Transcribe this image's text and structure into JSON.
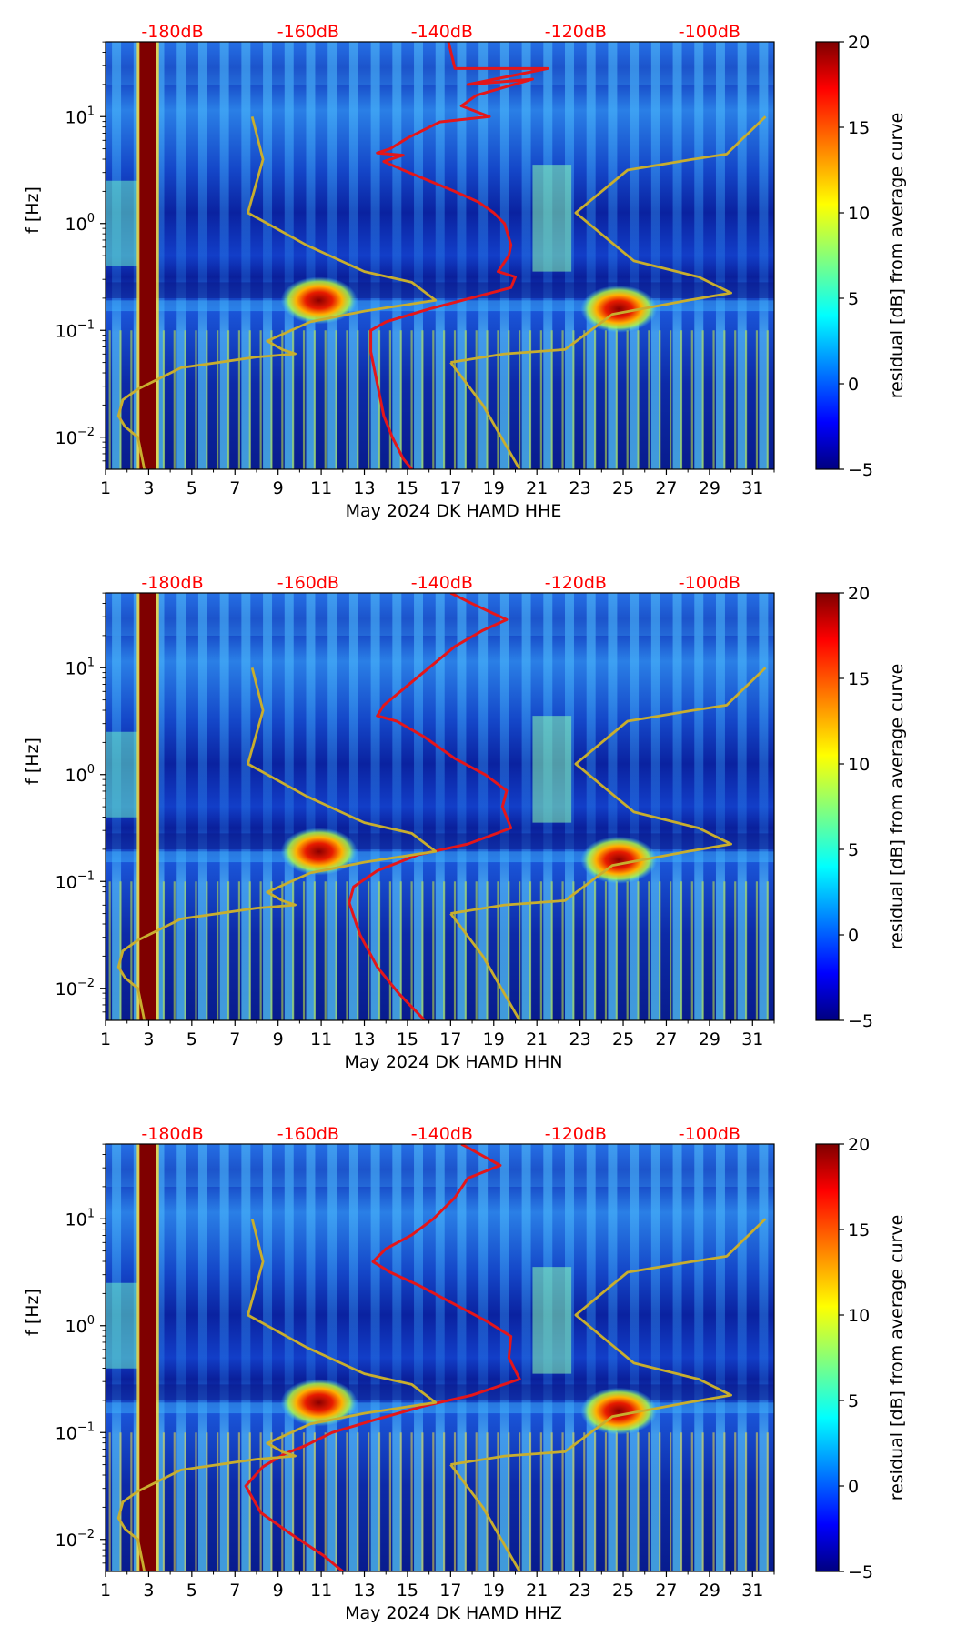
{
  "colors": {
    "red_curve": "#e4161a",
    "mustard_curve": "#c8ae2e",
    "db_label": "#ff0000",
    "axis": "#000000"
  },
  "colorbar": {
    "ticks": [
      "−5",
      "0",
      "5",
      "10",
      "15",
      "20"
    ],
    "tick_values": [
      -5,
      0,
      5,
      10,
      15,
      20
    ],
    "label": "residual [dB] from average curve"
  },
  "chart_data": [
    {
      "type": "heatmap",
      "id": "hhe",
      "xlabel": "May 2024 DK HAMD  HHE",
      "ylabel": "f [Hz]",
      "xlim": [
        1,
        32
      ],
      "ylim_log10": [
        -2.3,
        1.7
      ],
      "x_ticks": [
        "1",
        "3",
        "5",
        "7",
        "9",
        "11",
        "13",
        "15",
        "17",
        "19",
        "21",
        "23",
        "25",
        "27",
        "29",
        "31"
      ],
      "x_tick_values": [
        1,
        3,
        5,
        7,
        9,
        11,
        13,
        15,
        17,
        19,
        21,
        23,
        25,
        27,
        29,
        31
      ],
      "y_ticks": [
        {
          "base": "10",
          "exp": "−2",
          "log": -2
        },
        {
          "base": "10",
          "exp": "−1",
          "log": -1
        },
        {
          "base": "10",
          "exp": "0",
          "log": 0
        },
        {
          "base": "10",
          "exp": "1",
          "log": 1
        }
      ],
      "db_labels": [
        "-180dB",
        "-160dB",
        "-140dB",
        "-120dB",
        "-100dB"
      ],
      "db_label_days": [
        4.1,
        10.4,
        16.6,
        22.8,
        29.0
      ],
      "hot_spots": [
        {
          "day": 10.9,
          "log_f": -0.72,
          "value": 20
        },
        {
          "day": 24.8,
          "log_f": -0.8,
          "value": 17
        }
      ],
      "series": [
        {
          "name": "residual curve (red)",
          "color": "red",
          "points": [
            [
              16.9,
              1.7
            ],
            [
              17.2,
              1.45
            ],
            [
              21.5,
              1.45
            ],
            [
              17.8,
              1.3
            ],
            [
              20.8,
              1.35
            ],
            [
              18.2,
              1.2
            ],
            [
              17.5,
              1.1
            ],
            [
              18.8,
              1.0
            ],
            [
              16.5,
              0.95
            ],
            [
              15.0,
              0.8
            ],
            [
              14.2,
              0.7
            ],
            [
              13.6,
              0.66
            ],
            [
              14.8,
              0.64
            ],
            [
              13.9,
              0.58
            ],
            [
              14.8,
              0.5
            ],
            [
              16.0,
              0.4
            ],
            [
              17.2,
              0.3
            ],
            [
              18.3,
              0.2
            ],
            [
              19.0,
              0.1
            ],
            [
              19.5,
              0.0
            ],
            [
              19.8,
              -0.2
            ],
            [
              19.7,
              -0.3
            ],
            [
              19.2,
              -0.45
            ],
            [
              20.0,
              -0.5
            ],
            [
              19.8,
              -0.6
            ],
            [
              16.0,
              -0.8
            ],
            [
              14.0,
              -0.92
            ],
            [
              13.3,
              -1.0
            ],
            [
              13.3,
              -1.2
            ],
            [
              13.6,
              -1.5
            ],
            [
              13.9,
              -1.8
            ],
            [
              14.3,
              -2.0
            ],
            [
              14.8,
              -2.2
            ],
            [
              15.2,
              -2.3
            ]
          ]
        },
        {
          "name": "model curve (mustard)",
          "color": "mustard",
          "points": [
            [
              7.8,
              1.0
            ],
            [
              8.3,
              0.6
            ],
            [
              7.6,
              0.1
            ],
            [
              10.3,
              -0.2
            ],
            [
              13.0,
              -0.45
            ],
            [
              15.2,
              -0.55
            ],
            [
              16.3,
              -0.72
            ],
            [
              13.0,
              -0.82
            ],
            [
              10.5,
              -0.92
            ],
            [
              8.5,
              -1.1
            ],
            [
              9.2,
              -1.18
            ],
            [
              9.8,
              -1.22
            ],
            [
              8.0,
              -1.25
            ],
            [
              4.5,
              -1.35
            ],
            [
              2.5,
              -1.55
            ],
            [
              1.8,
              -1.65
            ],
            [
              1.6,
              -1.8
            ],
            [
              1.9,
              -1.9
            ],
            [
              2.5,
              -2.0
            ],
            [
              2.8,
              -2.3
            ]
          ]
        },
        {
          "name": "model curve lower right (mustard)",
          "color": "mustard",
          "points": [
            [
              17.0,
              -1.3
            ],
            [
              19.5,
              -1.22
            ],
            [
              22.3,
              -1.18
            ],
            [
              24.5,
              -0.85
            ],
            [
              28.0,
              -0.72
            ],
            [
              30.0,
              -0.65
            ],
            [
              28.5,
              -0.5
            ],
            [
              25.5,
              -0.35
            ],
            [
              22.8,
              0.1
            ],
            [
              25.2,
              0.5
            ],
            [
              28.2,
              0.6
            ],
            [
              29.8,
              0.65
            ],
            [
              31.6,
              1.0
            ]
          ]
        },
        {
          "name": "model curve bottom right (mustard)",
          "color": "mustard",
          "points": [
            [
              17.0,
              -1.3
            ],
            [
              18.5,
              -1.7
            ],
            [
              20.2,
              -2.3
            ]
          ]
        }
      ]
    },
    {
      "type": "heatmap",
      "id": "hhn",
      "xlabel": "May 2024 DK HAMD  HHN",
      "ylabel": "f [Hz]",
      "xlim": [
        1,
        32
      ],
      "ylim_log10": [
        -2.3,
        1.7
      ],
      "x_ticks": [
        "1",
        "3",
        "5",
        "7",
        "9",
        "11",
        "13",
        "15",
        "17",
        "19",
        "21",
        "23",
        "25",
        "27",
        "29",
        "31"
      ],
      "x_tick_values": [
        1,
        3,
        5,
        7,
        9,
        11,
        13,
        15,
        17,
        19,
        21,
        23,
        25,
        27,
        29,
        31
      ],
      "y_ticks": [
        {
          "base": "10",
          "exp": "−2",
          "log": -2
        },
        {
          "base": "10",
          "exp": "−1",
          "log": -1
        },
        {
          "base": "10",
          "exp": "0",
          "log": 0
        },
        {
          "base": "10",
          "exp": "1",
          "log": 1
        }
      ],
      "db_labels": [
        "-180dB",
        "-160dB",
        "-140dB",
        "-120dB",
        "-100dB"
      ],
      "db_label_days": [
        4.1,
        10.4,
        16.6,
        22.8,
        29.0
      ],
      "hot_spots": [
        {
          "day": 10.9,
          "log_f": -0.72,
          "value": 20
        },
        {
          "day": 24.8,
          "log_f": -0.8,
          "value": 17
        }
      ],
      "series": [
        {
          "name": "residual curve (red)",
          "color": "red",
          "points": [
            [
              17.0,
              1.7
            ],
            [
              18.0,
              1.6
            ],
            [
              19.6,
              1.45
            ],
            [
              18.5,
              1.35
            ],
            [
              17.2,
              1.2
            ],
            [
              16.0,
              1.0
            ],
            [
              14.8,
              0.8
            ],
            [
              13.9,
              0.65
            ],
            [
              13.6,
              0.55
            ],
            [
              14.5,
              0.5
            ],
            [
              15.8,
              0.35
            ],
            [
              17.2,
              0.15
            ],
            [
              18.6,
              0.0
            ],
            [
              19.6,
              -0.15
            ],
            [
              19.4,
              -0.3
            ],
            [
              19.8,
              -0.5
            ],
            [
              17.8,
              -0.65
            ],
            [
              15.5,
              -0.75
            ],
            [
              13.6,
              -0.9
            ],
            [
              12.5,
              -1.05
            ],
            [
              12.3,
              -1.2
            ],
            [
              12.8,
              -1.5
            ],
            [
              13.6,
              -1.8
            ],
            [
              14.6,
              -2.05
            ],
            [
              15.8,
              -2.3
            ]
          ]
        },
        {
          "name": "model curve (mustard)",
          "color": "mustard",
          "points": [
            [
              7.8,
              1.0
            ],
            [
              8.3,
              0.6
            ],
            [
              7.6,
              0.1
            ],
            [
              10.3,
              -0.2
            ],
            [
              13.0,
              -0.45
            ],
            [
              15.2,
              -0.55
            ],
            [
              16.3,
              -0.72
            ],
            [
              13.0,
              -0.82
            ],
            [
              10.5,
              -0.92
            ],
            [
              8.5,
              -1.1
            ],
            [
              9.2,
              -1.18
            ],
            [
              9.8,
              -1.22
            ],
            [
              8.0,
              -1.25
            ],
            [
              4.5,
              -1.35
            ],
            [
              2.5,
              -1.55
            ],
            [
              1.8,
              -1.65
            ],
            [
              1.6,
              -1.8
            ],
            [
              1.9,
              -1.9
            ],
            [
              2.5,
              -2.0
            ],
            [
              2.8,
              -2.3
            ]
          ]
        },
        {
          "name": "model curve lower right (mustard)",
          "color": "mustard",
          "points": [
            [
              17.0,
              -1.3
            ],
            [
              19.5,
              -1.22
            ],
            [
              22.3,
              -1.18
            ],
            [
              24.5,
              -0.85
            ],
            [
              28.0,
              -0.72
            ],
            [
              30.0,
              -0.65
            ],
            [
              28.5,
              -0.5
            ],
            [
              25.5,
              -0.35
            ],
            [
              22.8,
              0.1
            ],
            [
              25.2,
              0.5
            ],
            [
              28.2,
              0.6
            ],
            [
              29.8,
              0.65
            ],
            [
              31.6,
              1.0
            ]
          ]
        },
        {
          "name": "model curve bottom right (mustard)",
          "color": "mustard",
          "points": [
            [
              17.0,
              -1.3
            ],
            [
              18.5,
              -1.7
            ],
            [
              20.2,
              -2.3
            ]
          ]
        }
      ]
    },
    {
      "type": "heatmap",
      "id": "hhz",
      "xlabel": "May 2024 DK HAMD  HHZ",
      "ylabel": "f [Hz]",
      "xlim": [
        1,
        32
      ],
      "ylim_log10": [
        -2.3,
        1.7
      ],
      "x_ticks": [
        "1",
        "3",
        "5",
        "7",
        "9",
        "11",
        "13",
        "15",
        "17",
        "19",
        "21",
        "23",
        "25",
        "27",
        "29",
        "31"
      ],
      "x_tick_values": [
        1,
        3,
        5,
        7,
        9,
        11,
        13,
        15,
        17,
        19,
        21,
        23,
        25,
        27,
        29,
        31
      ],
      "y_ticks": [
        {
          "base": "10",
          "exp": "−2",
          "log": -2
        },
        {
          "base": "10",
          "exp": "−1",
          "log": -1
        },
        {
          "base": "10",
          "exp": "0",
          "log": 0
        },
        {
          "base": "10",
          "exp": "1",
          "log": 1
        }
      ],
      "db_labels": [
        "-180dB",
        "-160dB",
        "-140dB",
        "-120dB",
        "-100dB"
      ],
      "db_label_days": [
        4.1,
        10.4,
        16.6,
        22.8,
        29.0
      ],
      "hot_spots": [
        {
          "day": 10.9,
          "log_f": -0.72,
          "value": 20
        },
        {
          "day": 24.8,
          "log_f": -0.8,
          "value": 17
        }
      ],
      "series": [
        {
          "name": "residual curve (red)",
          "color": "red",
          "points": [
            [
              17.5,
              1.7
            ],
            [
              19.3,
              1.5
            ],
            [
              17.8,
              1.38
            ],
            [
              17.2,
              1.2
            ],
            [
              16.2,
              1.0
            ],
            [
              15.2,
              0.85
            ],
            [
              14.0,
              0.72
            ],
            [
              13.4,
              0.6
            ],
            [
              14.2,
              0.5
            ],
            [
              15.5,
              0.38
            ],
            [
              17.0,
              0.22
            ],
            [
              18.6,
              0.05
            ],
            [
              19.8,
              -0.1
            ],
            [
              19.7,
              -0.3
            ],
            [
              20.2,
              -0.5
            ],
            [
              18.0,
              -0.65
            ],
            [
              15.8,
              -0.75
            ],
            [
              13.5,
              -0.88
            ],
            [
              11.5,
              -1.0
            ],
            [
              10.3,
              -1.12
            ],
            [
              9.3,
              -1.2
            ],
            [
              8.3,
              -1.32
            ],
            [
              7.5,
              -1.5
            ],
            [
              8.2,
              -1.75
            ],
            [
              9.6,
              -1.95
            ],
            [
              11.1,
              -2.15
            ],
            [
              12.0,
              -2.3
            ]
          ]
        },
        {
          "name": "model curve (mustard)",
          "color": "mustard",
          "points": [
            [
              7.8,
              1.0
            ],
            [
              8.3,
              0.6
            ],
            [
              7.6,
              0.1
            ],
            [
              10.3,
              -0.2
            ],
            [
              13.0,
              -0.45
            ],
            [
              15.2,
              -0.55
            ],
            [
              16.3,
              -0.72
            ],
            [
              13.0,
              -0.82
            ],
            [
              10.5,
              -0.92
            ],
            [
              8.5,
              -1.1
            ],
            [
              9.2,
              -1.18
            ],
            [
              9.8,
              -1.22
            ],
            [
              8.0,
              -1.25
            ],
            [
              4.5,
              -1.35
            ],
            [
              2.5,
              -1.55
            ],
            [
              1.8,
              -1.65
            ],
            [
              1.6,
              -1.8
            ],
            [
              1.9,
              -1.9
            ],
            [
              2.5,
              -2.0
            ],
            [
              2.8,
              -2.3
            ]
          ]
        },
        {
          "name": "model curve lower right (mustard)",
          "color": "mustard",
          "points": [
            [
              17.0,
              -1.3
            ],
            [
              19.5,
              -1.22
            ],
            [
              22.3,
              -1.18
            ],
            [
              24.5,
              -0.85
            ],
            [
              28.0,
              -0.72
            ],
            [
              30.0,
              -0.65
            ],
            [
              28.5,
              -0.5
            ],
            [
              25.5,
              -0.35
            ],
            [
              22.8,
              0.1
            ],
            [
              25.2,
              0.5
            ],
            [
              28.2,
              0.6
            ],
            [
              29.8,
              0.65
            ],
            [
              31.6,
              1.0
            ]
          ]
        },
        {
          "name": "model curve bottom right (mustard)",
          "color": "mustard",
          "points": [
            [
              17.0,
              -1.3
            ],
            [
              18.5,
              -1.7
            ],
            [
              20.2,
              -2.3
            ]
          ]
        }
      ]
    }
  ]
}
